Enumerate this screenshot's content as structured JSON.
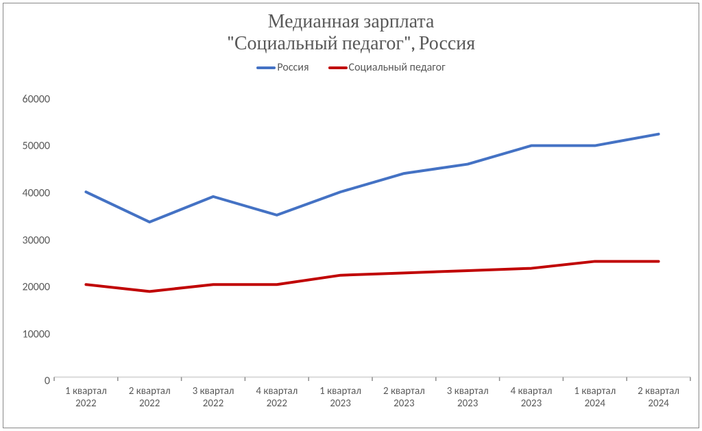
{
  "chart": {
    "type": "line",
    "title_line1": "Медианная зарплата",
    "title_line2": "\"Социальный педагог\", Россия",
    "title_color": "#595959",
    "title_fontsize": 28,
    "background_color": "#ffffff",
    "border_color": "#888888",
    "axis_line_color": "#d9d9d9",
    "axis_label_color": "#595959",
    "axis_label_fontsize": 16,
    "axis_font_family": "Calibri",
    "ylim": [
      0,
      60000
    ],
    "ytick_step": 10000,
    "yticks": [
      0,
      10000,
      20000,
      30000,
      40000,
      50000,
      60000
    ],
    "categories": [
      "1 квартал 2022",
      "2 квартал 2022",
      "3 квартал 2022",
      "4 квартал 2022",
      "1 квартал 2023",
      "2 квартал 2023",
      "3 квартал 2023",
      "4 квартал 2023",
      "1 квартал 2024",
      "2 квартал 2024"
    ],
    "category_line1": [
      "1 квартал",
      "2 квартал",
      "3 квартал",
      "4 квартал",
      "1 квартал",
      "2 квартал",
      "3 квартал",
      "4 квартал",
      "1 квартал",
      "2 квартал"
    ],
    "category_line2": [
      "2022",
      "2022",
      "2022",
      "2022",
      "2023",
      "2023",
      "2023",
      "2023",
      "2024",
      "2024"
    ],
    "category_tick_color": "#8c8c8c",
    "series": [
      {
        "name": "Россия",
        "color": "#4472c4",
        "line_width": 4,
        "marker": "none",
        "values": [
          40000,
          33500,
          39000,
          35000,
          40000,
          44000,
          46000,
          50000,
          50000,
          52500
        ]
      },
      {
        "name": "Социальный педагог",
        "color": "#c00000",
        "line_width": 4,
        "marker": "none",
        "values": [
          20000,
          18500,
          20000,
          20000,
          22000,
          22500,
          23000,
          23500,
          25000,
          25000
        ]
      }
    ],
    "legend": {
      "position": "top-center",
      "fontsize": 16,
      "color": "#595959",
      "swatch_width": 28,
      "swatch_height": 4
    }
  }
}
